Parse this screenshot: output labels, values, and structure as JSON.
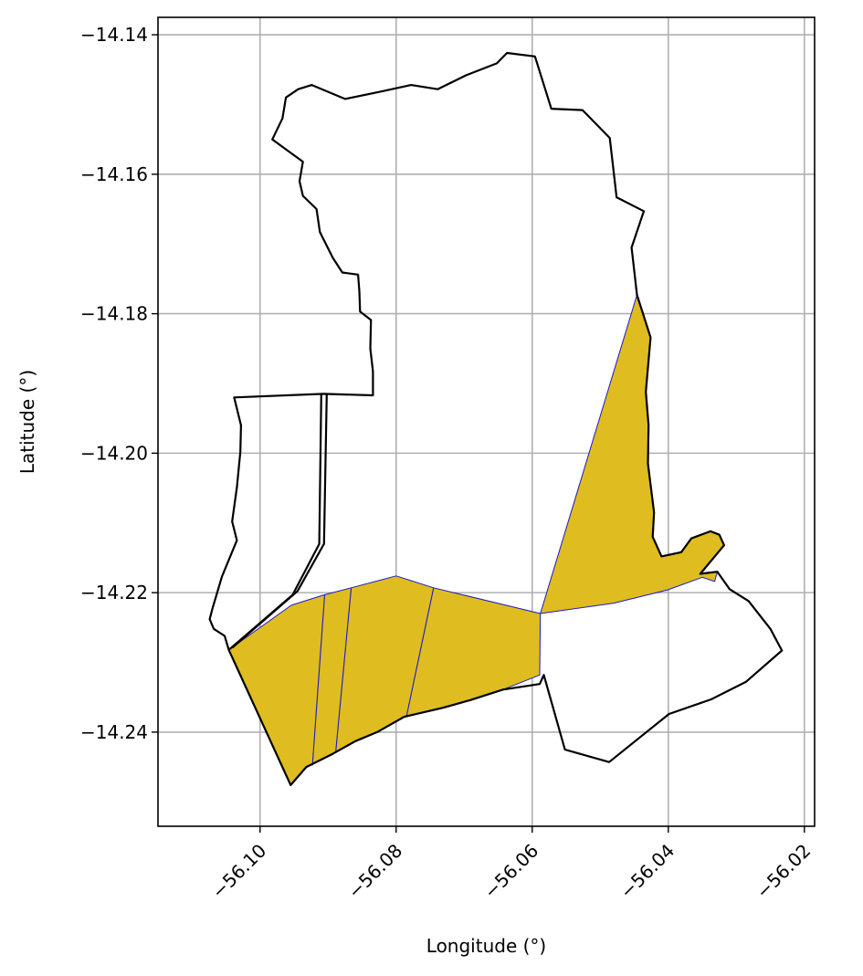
{
  "chart_data": {
    "type": "map",
    "xlabel": "Longitude (°)",
    "ylabel": "Latitude (°)",
    "xlim": [
      -56.115,
      -56.0185
    ],
    "ylim": [
      -14.2535,
      -14.1375
    ],
    "x_ticks": [
      -56.1,
      -56.08,
      -56.06,
      -56.04,
      -56.02
    ],
    "x_tick_labels": [
      "−56.10",
      "−56.08",
      "−56.06",
      "−56.04",
      "−56.02"
    ],
    "y_ticks": [
      -14.14,
      -14.16,
      -14.18,
      -14.2,
      -14.22,
      -14.24
    ],
    "y_tick_labels": [
      "−14.14",
      "−14.16",
      "−14.18",
      "−14.20",
      "−14.22",
      "−14.24"
    ],
    "grid": true,
    "colors": {
      "highlight_fill": "#dfbc1f",
      "parcel_edge": "#1a1acc",
      "boundary": "#000000",
      "grid": "#b0b0b0"
    },
    "outer_boundary": [
      [
        -56.1046,
        -14.2282
      ],
      [
        -56.1052,
        -14.2262
      ],
      [
        -56.1068,
        -14.2252
      ],
      [
        -56.1074,
        -14.2238
      ],
      [
        -56.107,
        -14.2223
      ],
      [
        -56.1056,
        -14.2177
      ],
      [
        -56.1034,
        -14.2125
      ],
      [
        -56.1041,
        -14.2098
      ],
      [
        -56.1034,
        -14.2049
      ],
      [
        -56.1029,
        -14.1998
      ],
      [
        -56.1028,
        -14.196
      ],
      [
        -56.1038,
        -14.192
      ],
      [
        -56.0907,
        -14.1915
      ],
      [
        -56.0834,
        -14.1917
      ],
      [
        -56.0834,
        -14.1883
      ],
      [
        -56.0838,
        -14.185
      ],
      [
        -56.0837,
        -14.1809
      ],
      [
        -56.0853,
        -14.1797
      ],
      [
        -56.0854,
        -14.1768
      ],
      [
        -56.0856,
        -14.1744
      ],
      [
        -56.0879,
        -14.1741
      ],
      [
        -56.0893,
        -14.172
      ],
      [
        -56.0912,
        -14.1683
      ],
      [
        -56.0917,
        -14.165
      ],
      [
        -56.0937,
        -14.1631
      ],
      [
        -56.0942,
        -14.161
      ],
      [
        -56.0937,
        -14.1582
      ],
      [
        -56.0961,
        -14.1565
      ],
      [
        -56.0982,
        -14.155
      ],
      [
        -56.0967,
        -14.152
      ],
      [
        -56.0962,
        -14.149
      ],
      [
        -56.0944,
        -14.1478
      ],
      [
        -56.0924,
        -14.1472
      ],
      [
        -56.0875,
        -14.1492
      ],
      [
        -56.0825,
        -14.1482
      ],
      [
        -56.0778,
        -14.1472
      ],
      [
        -56.0739,
        -14.1478
      ],
      [
        -56.0697,
        -14.1458
      ],
      [
        -56.0652,
        -14.1441
      ],
      [
        -56.0637,
        -14.1426
      ],
      [
        -56.0596,
        -14.1431
      ],
      [
        -56.0572,
        -14.1506
      ],
      [
        -56.0526,
        -14.1508
      ],
      [
        -56.0486,
        -14.1548
      ],
      [
        -56.0476,
        -14.1633
      ],
      [
        -56.0436,
        -14.1653
      ],
      [
        -56.0454,
        -14.1705
      ],
      [
        -56.0446,
        -14.1773
      ],
      [
        -56.0426,
        -14.1834
      ],
      [
        -56.0433,
        -14.1912
      ],
      [
        -56.0429,
        -14.196
      ],
      [
        -56.043,
        -14.2015
      ],
      [
        -56.0421,
        -14.2085
      ],
      [
        -56.0423,
        -14.212
      ],
      [
        -56.041,
        -14.2148
      ],
      [
        -56.0381,
        -14.2142
      ],
      [
        -56.0366,
        -14.2122
      ],
      [
        -56.0338,
        -14.2112
      ],
      [
        -56.0325,
        -14.2117
      ],
      [
        -56.0318,
        -14.2132
      ],
      [
        -56.0353,
        -14.2173
      ],
      [
        -56.0328,
        -14.217
      ],
      [
        -56.031,
        -14.2195
      ],
      [
        -56.0282,
        -14.2212
      ],
      [
        -56.025,
        -14.2252
      ],
      [
        -56.0233,
        -14.2283
      ],
      [
        -56.0286,
        -14.2328
      ],
      [
        -56.0337,
        -14.2353
      ],
      [
        -56.0399,
        -14.2374
      ],
      [
        -56.0487,
        -14.2443
      ],
      [
        -56.0552,
        -14.2425
      ],
      [
        -56.0583,
        -14.2318
      ],
      [
        -56.0589,
        -14.2331
      ],
      [
        -56.0643,
        -14.2339
      ],
      [
        -56.0691,
        -14.2354
      ],
      [
        -56.0731,
        -14.2365
      ],
      [
        -56.0788,
        -14.2378
      ],
      [
        -56.0828,
        -14.24
      ],
      [
        -56.086,
        -14.2413
      ],
      [
        -56.0893,
        -14.2431
      ],
      [
        -56.0932,
        -14.245
      ],
      [
        -56.0955,
        -14.2476
      ],
      [
        -56.1046,
        -14.2282
      ]
    ],
    "corridor": {
      "left_edge": [
        [
          -56.1046,
          -14.2282
        ],
        [
          -56.0952,
          -14.2203
        ],
        [
          -56.0913,
          -14.213
        ],
        [
          -56.091,
          -14.1915
        ]
      ],
      "right_edge": [
        [
          -56.0902,
          -14.1915
        ],
        [
          -56.0906,
          -14.213
        ],
        [
          -56.0945,
          -14.2198
        ],
        [
          -56.1041,
          -14.2279
        ]
      ]
    },
    "highlighted_parcels": [
      {
        "region": "south-west",
        "polygon": [
          [
            -56.1046,
            -14.2282
          ],
          [
            -56.0954,
            -14.2218
          ],
          [
            -56.0905,
            -14.2203
          ],
          [
            -56.0866,
            -14.2193
          ],
          [
            -56.08,
            -14.2176
          ],
          [
            -56.0745,
            -14.2193
          ],
          [
            -56.0588,
            -14.223
          ],
          [
            -56.0589,
            -14.2318
          ],
          [
            -56.0643,
            -14.2339
          ],
          [
            -56.0691,
            -14.2354
          ],
          [
            -56.0731,
            -14.2365
          ],
          [
            -56.0788,
            -14.2378
          ],
          [
            -56.0828,
            -14.24
          ],
          [
            -56.086,
            -14.2413
          ],
          [
            -56.0893,
            -14.2431
          ],
          [
            -56.0932,
            -14.245
          ],
          [
            -56.0955,
            -14.2476
          ],
          [
            -56.1046,
            -14.2282
          ]
        ],
        "dividers": [
          [
            [
              -56.0905,
              -14.2203
            ],
            [
              -56.0923,
              -14.2448
            ]
          ],
          [
            [
              -56.0866,
              -14.2193
            ],
            [
              -56.0889,
              -14.243
            ]
          ],
          [
            [
              -56.0745,
              -14.2193
            ],
            [
              -56.0785,
              -14.2378
            ]
          ]
        ]
      },
      {
        "region": "north-east",
        "polygon": [
          [
            -56.0446,
            -14.1773
          ],
          [
            -56.0426,
            -14.1834
          ],
          [
            -56.0433,
            -14.1912
          ],
          [
            -56.0429,
            -14.196
          ],
          [
            -56.043,
            -14.2015
          ],
          [
            -56.0421,
            -14.2085
          ],
          [
            -56.0423,
            -14.212
          ],
          [
            -56.041,
            -14.2148
          ],
          [
            -56.0381,
            -14.2142
          ],
          [
            -56.0366,
            -14.2122
          ],
          [
            -56.0338,
            -14.2112
          ],
          [
            -56.0325,
            -14.2117
          ],
          [
            -56.0318,
            -14.2132
          ],
          [
            -56.0353,
            -14.2173
          ],
          [
            -56.0328,
            -14.217
          ],
          [
            -56.0332,
            -14.2184
          ],
          [
            -56.035,
            -14.2178
          ],
          [
            -56.0401,
            -14.2196
          ],
          [
            -56.048,
            -14.2215
          ],
          [
            -56.0588,
            -14.223
          ],
          [
            -56.0446,
            -14.1773
          ]
        ],
        "dividers": []
      }
    ]
  }
}
